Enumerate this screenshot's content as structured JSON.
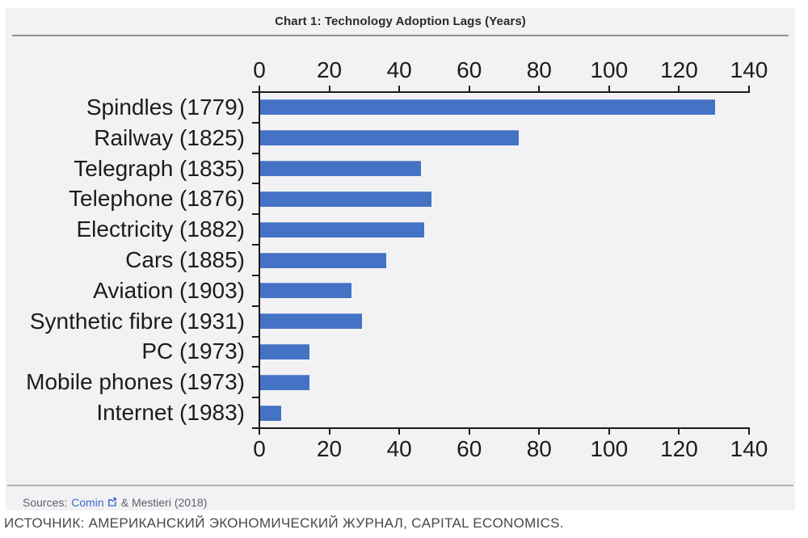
{
  "page": {
    "title": "Chart 1: Technology Adoption Lags (Years)",
    "footnote": "ИСТОЧНИК: АМЕРИКАНСКИЙ ЭКОНОМИЧЕСКИЙ ЖУРНАЛ, CAPITAL ECONOMICS."
  },
  "sources": {
    "prefix": "Sources:",
    "link_label": "Comin",
    "icon": "external-link-icon",
    "suffix": "& Mestieri (2018)"
  },
  "colors": {
    "bar": "#4472c4",
    "axis": "#1a1a1a",
    "card_background": "#f2f2f4",
    "link": "#3e6dcc"
  },
  "chart_data": {
    "type": "bar",
    "orientation": "horizontal",
    "title": "Chart 1: Technology Adoption Lags (Years)",
    "categories": [
      "Spindles (1779)",
      "Railway (1825)",
      "Telegraph (1835)",
      "Telephone (1876)",
      "Electricity (1882)",
      "Cars (1885)",
      "Aviation (1903)",
      "Synthetic fibre (1931)",
      "PC (1973)",
      "Mobile phones (1973)",
      "Internet (1983)"
    ],
    "values": [
      130,
      74,
      46,
      49,
      47,
      36,
      26,
      29,
      14,
      14,
      6
    ],
    "xlabel": "",
    "ylabel": "",
    "xlim": [
      0,
      140
    ],
    "xticks": [
      0,
      20,
      40,
      60,
      80,
      100,
      120,
      140
    ],
    "grid": false,
    "legend": false,
    "tick_labels_top": true,
    "tick_labels_bottom": true,
    "units": "years"
  }
}
